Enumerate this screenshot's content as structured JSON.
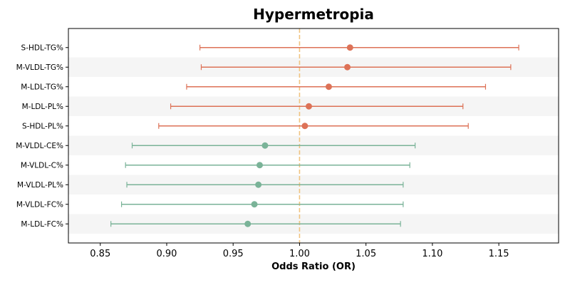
{
  "chart_data": {
    "type": "scatter",
    "title": "Hypermetropia",
    "xlabel": "Odds Ratio (OR)",
    "ylabel": "",
    "xlim": [
      0.826,
      1.195
    ],
    "xticks": [
      "0.85",
      "0.90",
      "0.95",
      "1.00",
      "1.05",
      "1.10",
      "1.15"
    ],
    "reference_line": 1.0,
    "grid": false,
    "colors": {
      "positive": "#dd7257",
      "negative": "#7ab398",
      "reference": "#f0c380",
      "band": "#f5f5f5"
    },
    "rows": [
      {
        "label": "S-HDL-TG%",
        "or": 1.038,
        "lower": 0.925,
        "upper": 1.165
      },
      {
        "label": "M-VLDL-TG%",
        "or": 1.036,
        "lower": 0.926,
        "upper": 1.159
      },
      {
        "label": "M-LDL-TG%",
        "or": 1.022,
        "lower": 0.915,
        "upper": 1.14
      },
      {
        "label": "M-LDL-PL%",
        "or": 1.007,
        "lower": 0.903,
        "upper": 1.123
      },
      {
        "label": "S-HDL-PL%",
        "or": 1.004,
        "lower": 0.894,
        "upper": 1.127
      },
      {
        "label": "M-VLDL-CE%",
        "or": 0.974,
        "lower": 0.874,
        "upper": 1.087
      },
      {
        "label": "M-VLDL-C%",
        "or": 0.97,
        "lower": 0.869,
        "upper": 1.083
      },
      {
        "label": "M-VLDL-PL%",
        "or": 0.969,
        "lower": 0.87,
        "upper": 1.078
      },
      {
        "label": "M-VLDL-FC%",
        "or": 0.966,
        "lower": 0.866,
        "upper": 1.078
      },
      {
        "label": "M-LDL-FC%",
        "or": 0.961,
        "lower": 0.858,
        "upper": 1.076
      }
    ]
  }
}
